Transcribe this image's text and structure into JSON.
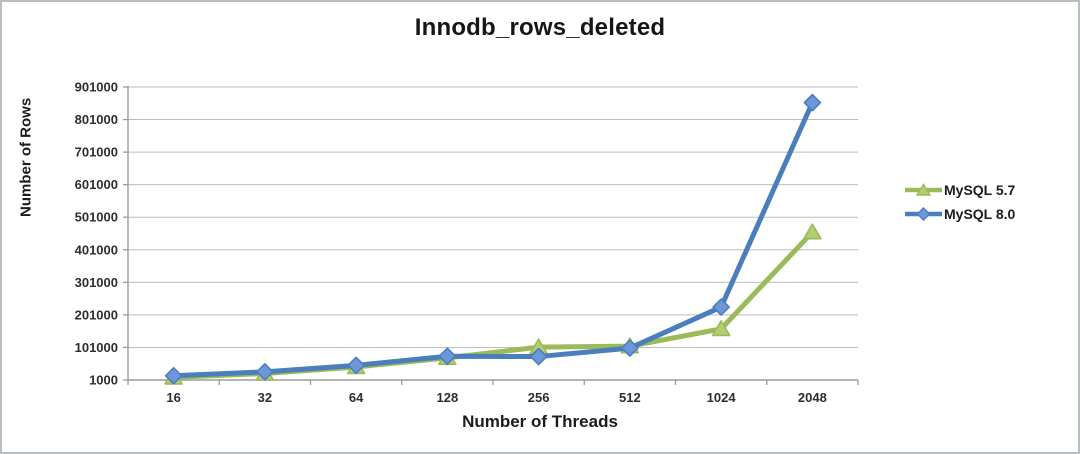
{
  "chart_data": {
    "type": "line",
    "title": "Innodb_rows_deleted",
    "xlabel": "Number of Threads",
    "ylabel": "Number of Rows",
    "categories": [
      "16",
      "32",
      "64",
      "128",
      "256",
      "512",
      "1024",
      "2048"
    ],
    "y_ticks": [
      1000,
      101000,
      201000,
      301000,
      401000,
      501000,
      601000,
      701000,
      801000,
      901000
    ],
    "ylim": [
      1000,
      901000
    ],
    "grid": true,
    "legend_position": "right",
    "series": [
      {
        "name": "MySQL 5.7",
        "marker": "triangle",
        "color": "#9cba5a",
        "marker_fill": "#b3cd71",
        "values": [
          9000,
          21000,
          41000,
          69000,
          102000,
          105000,
          158000,
          455000
        ]
      },
      {
        "name": "MySQL 8.0",
        "marker": "diamond",
        "color": "#4a7ebc",
        "marker_fill": "#6d97d9",
        "values": [
          14000,
          26000,
          46000,
          74000,
          73000,
          99000,
          225000,
          853000
        ]
      }
    ],
    "colors": {
      "grid": "#bdbdbd",
      "axis": "#9b9b9b",
      "text": "#2e2e2e"
    }
  }
}
